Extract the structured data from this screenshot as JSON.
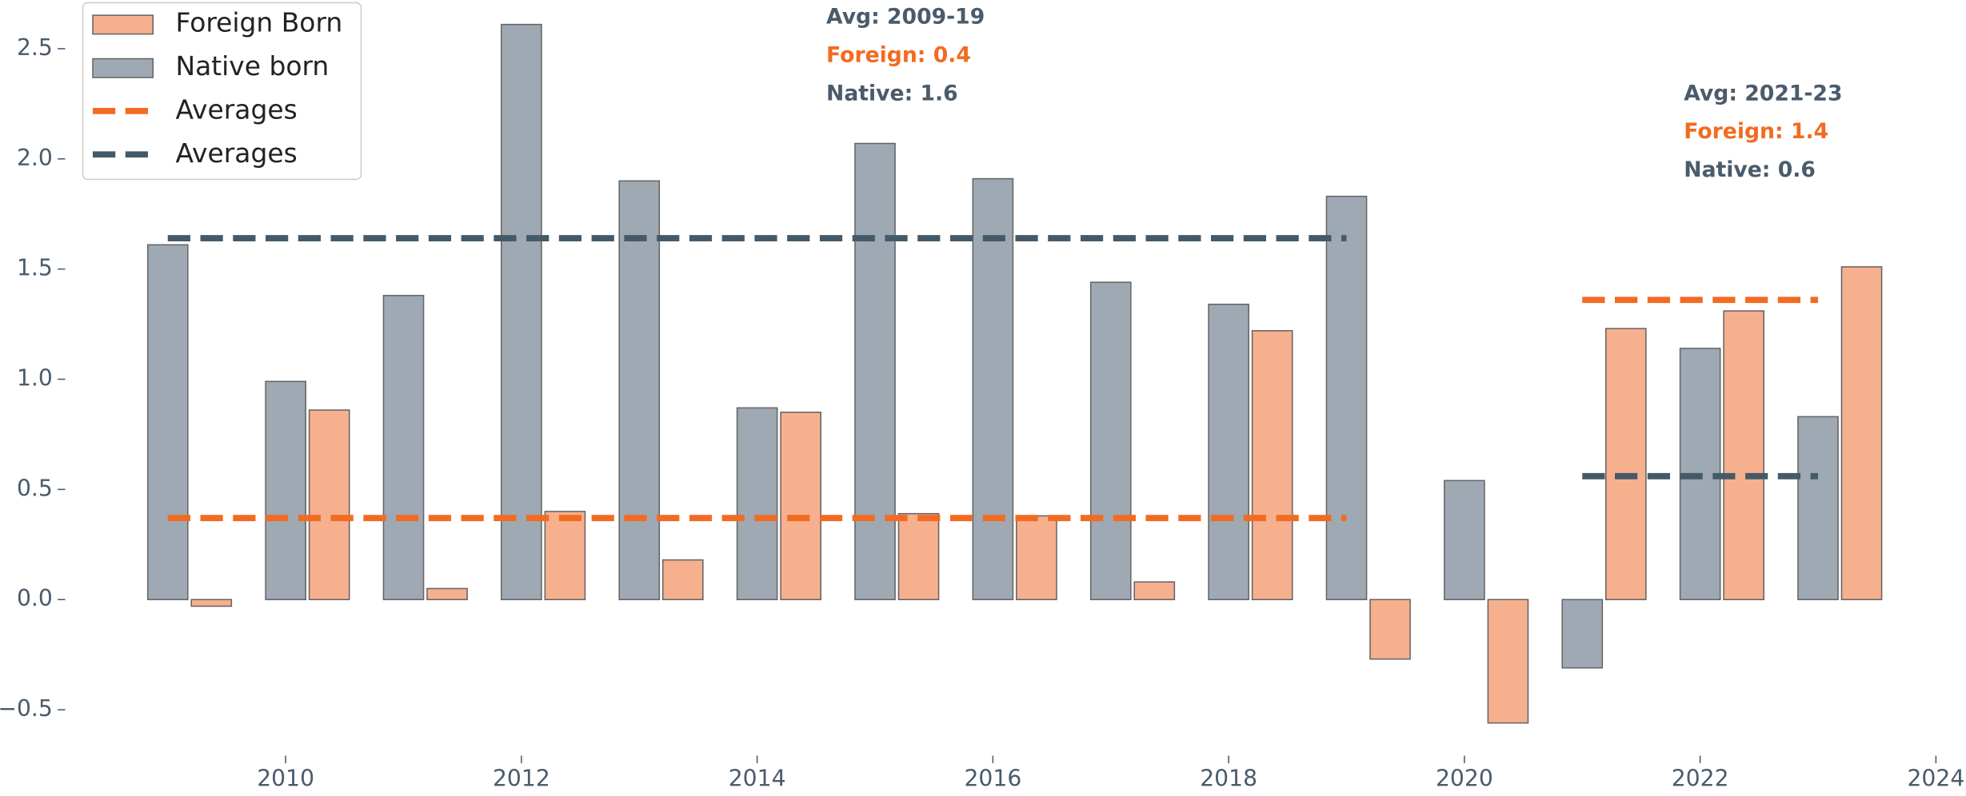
{
  "chart_data": {
    "type": "bar",
    "x": [
      2009,
      2010,
      2011,
      2012,
      2013,
      2014,
      2015,
      2016,
      2017,
      2018,
      2019,
      2020,
      2021,
      2022,
      2023
    ],
    "series": [
      {
        "name": "Foreign Born",
        "color": "#f6b08e",
        "values": [
          -0.03,
          0.86,
          0.05,
          0.4,
          0.18,
          0.85,
          0.39,
          0.38,
          0.08,
          1.22,
          -0.27,
          -0.56,
          1.23,
          1.31,
          1.51
        ]
      },
      {
        "name": "Native born",
        "color": "#9fa9b3",
        "values": [
          1.61,
          0.99,
          1.38,
          2.61,
          1.9,
          0.87,
          2.07,
          1.91,
          1.44,
          1.34,
          1.83,
          0.54,
          -0.31,
          1.14,
          0.83
        ]
      }
    ],
    "averages": [
      {
        "name": "Averages",
        "color": "#f26b22",
        "segments": [
          {
            "x": [
              2009,
              2019
            ],
            "value": 0.37
          },
          {
            "x": [
              2021,
              2023
            ],
            "value": 1.36
          }
        ]
      },
      {
        "name": "Averages",
        "color": "#455a68",
        "segments": [
          {
            "x": [
              2009,
              2019
            ],
            "value": 1.64
          },
          {
            "x": [
              2021,
              2023
            ],
            "value": 0.56
          }
        ]
      }
    ],
    "annotations": [
      {
        "lines": [
          {
            "text": "Avg: 2009-19",
            "color": "#4a5b6b"
          },
          {
            "text": "Foreign: 0.4",
            "color": "#f26b22"
          },
          {
            "text": "Native: 1.6",
            "color": "#4a5b6b"
          }
        ]
      },
      {
        "lines": [
          {
            "text": "Avg: 2021-23",
            "color": "#4a5b6b"
          },
          {
            "text": "Foreign: 1.4",
            "color": "#f26b22"
          },
          {
            "text": "Native: 0.6",
            "color": "#4a5b6b"
          }
        ]
      }
    ],
    "xlim": [
      2008.3,
      2024
    ],
    "xticks": [
      2010,
      2012,
      2014,
      2016,
      2018,
      2020,
      2022,
      2024
    ],
    "ylim": [
      -0.68,
      2.72
    ],
    "yticks": [
      {
        "value": -0.5,
        "label": "−0.5"
      },
      {
        "value": 0,
        "label": "0.0"
      },
      0.5,
      {
        "value": 1,
        "label": "1.0"
      },
      1.5,
      {
        "value": 2,
        "label": "2.0"
      },
      2.5
    ],
    "legend": "upper left"
  }
}
